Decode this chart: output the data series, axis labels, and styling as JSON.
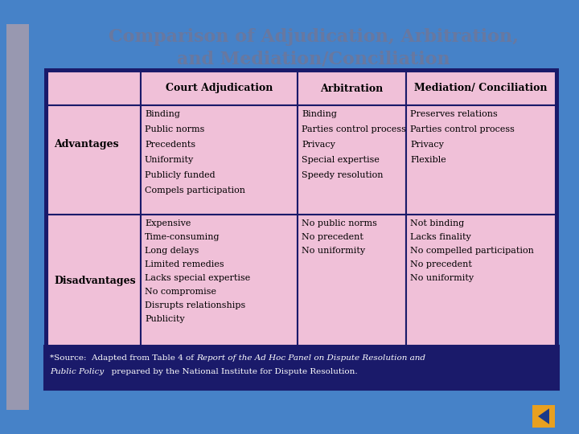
{
  "title_line1": "Comparison of Adjudication, Arbitration,",
  "title_line2": "and Mediation/Conciliation",
  "bg_color": "#4682C8",
  "table_bg": "#F0C0D8",
  "table_border": "#1A1A6A",
  "title_color": "#6878A0",
  "header_row": [
    "",
    "Court Adjudication",
    "Arbitration",
    "Mediation/ Conciliation"
  ],
  "row1_label": "Advantages",
  "row1_col1": [
    "Binding",
    "Public norms",
    "Precedents",
    "Uniformity",
    "Publicly funded",
    "Compels participation"
  ],
  "row1_col2": [
    "Binding",
    "Parties control process",
    "Privacy",
    "Special expertise",
    "Speedy resolution"
  ],
  "row1_col3": [
    "Preserves relations",
    "Parties control process",
    "Privacy",
    "Flexible"
  ],
  "row2_label": "Disadvantages",
  "row2_col1": [
    "Expensive",
    "Time-consuming",
    "Long delays",
    "Limited remedies",
    "Lacks special expertise",
    "No compromise",
    "Disrupts relationships",
    "Publicity"
  ],
  "row2_col2": [
    "No public norms",
    "No precedent",
    "No uniformity"
  ],
  "row2_col3": [
    "Not binding",
    "Lacks finality",
    "No compelled participation",
    "No precedent",
    "No uniformity"
  ],
  "nav_color": "#E8A020",
  "nav_arrow_color": "#1A3A8A",
  "left_bar_color": "#9898B0",
  "footnote_bg": "#1A1A6A",
  "footnote_color": "#FFFFFF"
}
